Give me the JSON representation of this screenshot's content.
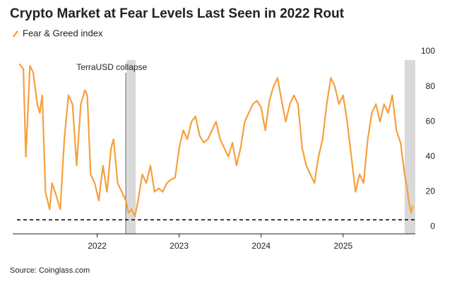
{
  "chart_data": {
    "type": "line",
    "title": "Crypto Market at Fear Levels Last Seen in 2022 Rout",
    "source": "Source: Coinglass.com",
    "x": [
      2021.05,
      2021.1,
      2021.13,
      2021.18,
      2021.22,
      2021.27,
      2021.3,
      2021.33,
      2021.37,
      2021.42,
      2021.45,
      2021.5,
      2021.55,
      2021.6,
      2021.65,
      2021.7,
      2021.75,
      2021.8,
      2021.85,
      2021.88,
      2021.92,
      2021.97,
      2022.02,
      2022.07,
      2022.12,
      2022.17,
      2022.2,
      2022.25,
      2022.3,
      2022.35,
      2022.38,
      2022.42,
      2022.46,
      2022.5,
      2022.55,
      2022.6,
      2022.65,
      2022.7,
      2022.75,
      2022.8,
      2022.85,
      2022.9,
      2022.95,
      2023.0,
      2023.05,
      2023.1,
      2023.15,
      2023.2,
      2023.25,
      2023.3,
      2023.35,
      2023.4,
      2023.45,
      2023.5,
      2023.55,
      2023.6,
      2023.65,
      2023.7,
      2023.75,
      2023.8,
      2023.85,
      2023.9,
      2023.95,
      2024.0,
      2024.05,
      2024.1,
      2024.15,
      2024.2,
      2024.25,
      2024.3,
      2024.35,
      2024.4,
      2024.45,
      2024.5,
      2024.55,
      2024.6,
      2024.65,
      2024.7,
      2024.75,
      2024.8,
      2024.85,
      2024.9,
      2024.95,
      2025.0,
      2025.05,
      2025.1,
      2025.15,
      2025.2,
      2025.25,
      2025.3,
      2025.35,
      2025.4,
      2025.45,
      2025.5,
      2025.55,
      2025.6,
      2025.65,
      2025.7,
      2025.75,
      2025.78,
      2025.8,
      2025.83,
      2025.85
    ],
    "series": [
      {
        "name": "Fear & Greed index",
        "color": "#f7a03c",
        "values": [
          93,
          90,
          40,
          92,
          88,
          70,
          65,
          75,
          20,
          10,
          25,
          18,
          10,
          50,
          75,
          70,
          35,
          70,
          78,
          75,
          30,
          25,
          15,
          35,
          20,
          45,
          50,
          25,
          20,
          15,
          8,
          10,
          6,
          15,
          30,
          25,
          35,
          20,
          22,
          20,
          25,
          27,
          28,
          45,
          55,
          50,
          60,
          63,
          52,
          48,
          50,
          55,
          60,
          50,
          45,
          40,
          48,
          35,
          45,
          60,
          65,
          70,
          72,
          68,
          55,
          72,
          80,
          85,
          72,
          60,
          70,
          75,
          70,
          45,
          35,
          30,
          25,
          40,
          50,
          70,
          85,
          80,
          70,
          75,
          60,
          40,
          20,
          30,
          25,
          50,
          65,
          70,
          60,
          70,
          65,
          75,
          55,
          48,
          30,
          22,
          15,
          8,
          12
        ]
      }
    ],
    "xlim": [
      2020.97,
      2025.88
    ],
    "xticks": [
      2022,
      2023,
      2024,
      2025
    ],
    "ylim": [
      -4,
      100
    ],
    "yticks": [
      0,
      20,
      40,
      60,
      80,
      100
    ],
    "shaded_spans": [
      [
        2022.36,
        2022.47
      ],
      [
        2025.75,
        2025.88
      ]
    ],
    "annotations": [
      {
        "label": "TerraUSD collapse",
        "x": 2022.35
      }
    ],
    "reference_line": {
      "value": 4,
      "style": "dashed"
    }
  }
}
